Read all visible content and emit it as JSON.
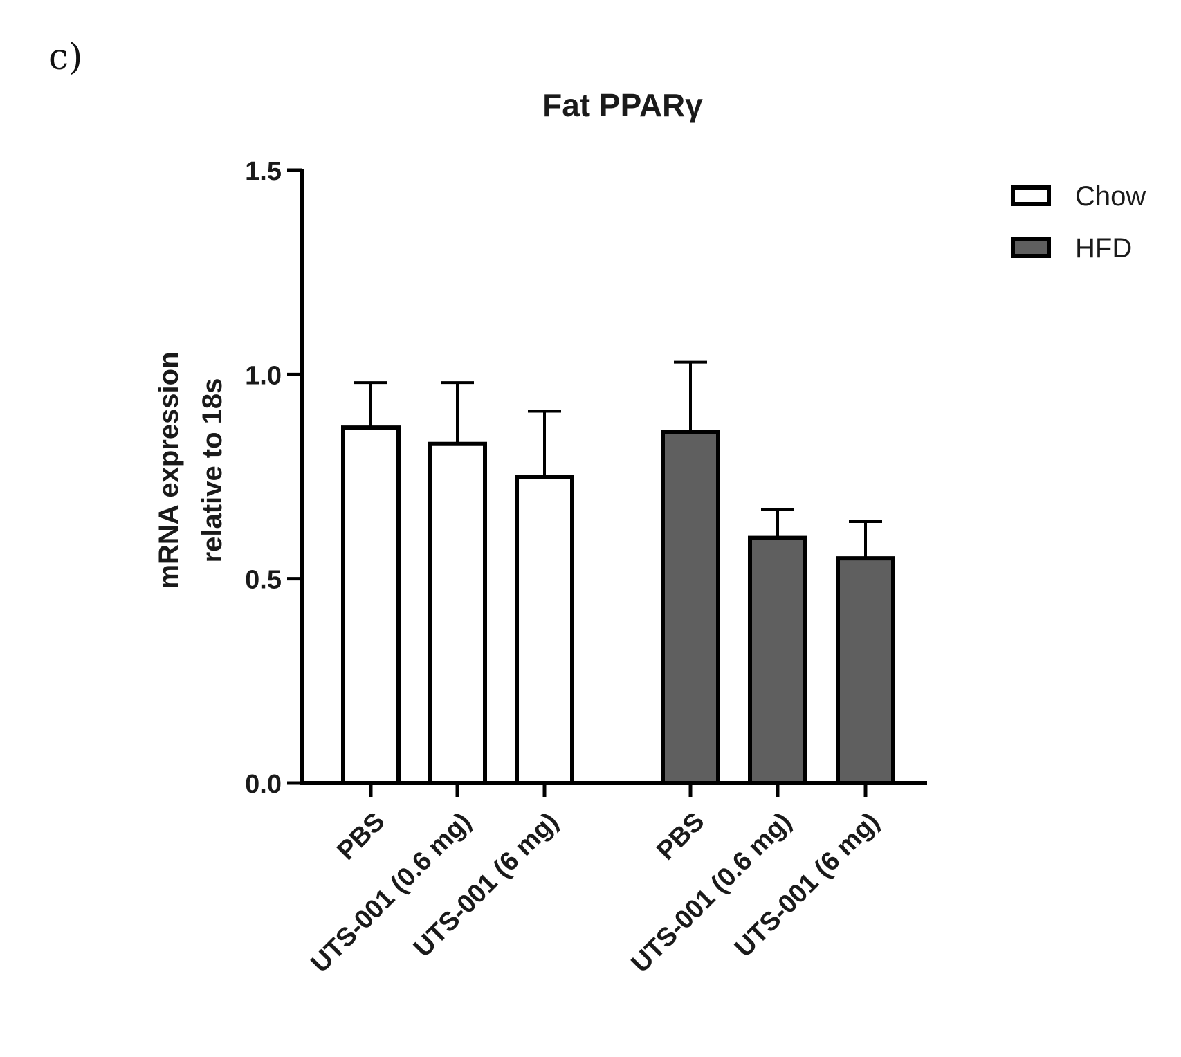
{
  "panel_label": "c)",
  "chart_data": {
    "type": "bar",
    "title": "Fat PPARγ",
    "ylabel_lines": [
      "mRNA expression",
      "relative to 18s"
    ],
    "xlabel": "",
    "ylim": [
      0,
      1.5
    ],
    "yticks": [
      "0.0",
      "0.5",
      "1.0",
      "1.5"
    ],
    "ytick_values": [
      0,
      0.5,
      1.0,
      1.5
    ],
    "legend_position": "top-right",
    "groups": [
      {
        "name": "Chow",
        "color": "#ffffff",
        "categories": [
          "PBS",
          "UTS-001 (0.6 mg)",
          "UTS-001 (6 mg)"
        ],
        "values": [
          0.87,
          0.83,
          0.75
        ],
        "errors": [
          0.11,
          0.15,
          0.16
        ]
      },
      {
        "name": "HFD",
        "color": "#5f5f5f",
        "categories": [
          "PBS",
          "UTS-001 (0.6 mg)",
          "UTS-001 (6 mg)"
        ],
        "values": [
          0.86,
          0.6,
          0.55
        ],
        "errors": [
          0.17,
          0.07,
          0.09
        ]
      }
    ]
  }
}
